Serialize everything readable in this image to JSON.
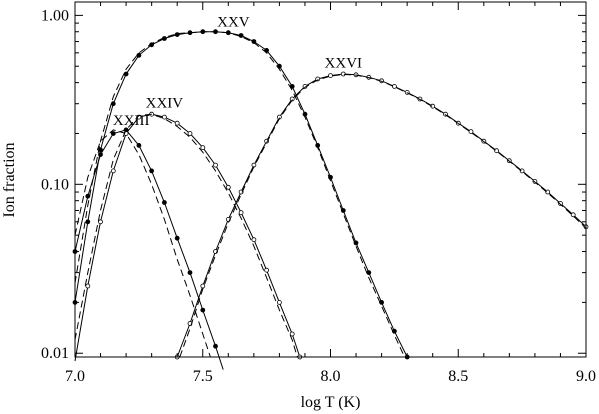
{
  "chart_data": {
    "type": "line",
    "title": "",
    "xlabel": "log T (K)",
    "ylabel": "Ion fraction",
    "x_scale": "linear",
    "y_scale": "log",
    "xlim": [
      7.0,
      9.0
    ],
    "ylim": [
      0.0095,
      1.2
    ],
    "x_ticks": [
      "7.0",
      "7.5",
      "8.0",
      "8.5",
      "9.0"
    ],
    "y_ticks": [
      "0.01",
      "0.10",
      "1.00"
    ],
    "x_tick_values": [
      7.0,
      7.5,
      8.0,
      8.5,
      9.0
    ],
    "y_tick_values": [
      0.01,
      0.1,
      1.0
    ],
    "grid": false,
    "legend": "none",
    "series": [
      {
        "name": "XXIII",
        "style": "solid",
        "marker": "filled",
        "points": [
          [
            7.0,
            0.04
          ],
          [
            7.05,
            0.085
          ],
          [
            7.1,
            0.15
          ],
          [
            7.15,
            0.2
          ],
          [
            7.2,
            0.21
          ],
          [
            7.25,
            0.17
          ],
          [
            7.3,
            0.12
          ],
          [
            7.35,
            0.078
          ],
          [
            7.4,
            0.048
          ],
          [
            7.45,
            0.03
          ],
          [
            7.5,
            0.018
          ],
          [
            7.55,
            0.011
          ],
          [
            7.58,
            0.008
          ]
        ]
      },
      {
        "name": "XXIII",
        "style": "dashed",
        "marker": "filled",
        "points": [
          [
            7.0,
            0.05
          ],
          [
            7.05,
            0.11
          ],
          [
            7.1,
            0.18
          ],
          [
            7.15,
            0.21
          ],
          [
            7.2,
            0.2
          ],
          [
            7.25,
            0.15
          ],
          [
            7.3,
            0.1
          ],
          [
            7.35,
            0.062
          ],
          [
            7.4,
            0.036
          ],
          [
            7.45,
            0.022
          ],
          [
            7.5,
            0.013
          ],
          [
            7.53,
            0.0095
          ]
        ]
      },
      {
        "name": "XXIV",
        "style": "solid",
        "marker": "open",
        "points": [
          [
            7.0,
            0.009
          ],
          [
            7.05,
            0.025
          ],
          [
            7.1,
            0.06
          ],
          [
            7.15,
            0.12
          ],
          [
            7.2,
            0.2
          ],
          [
            7.25,
            0.25
          ],
          [
            7.3,
            0.26
          ],
          [
            7.35,
            0.25
          ],
          [
            7.4,
            0.23
          ],
          [
            7.45,
            0.2
          ],
          [
            7.5,
            0.165
          ],
          [
            7.55,
            0.13
          ],
          [
            7.6,
            0.096
          ],
          [
            7.65,
            0.068
          ],
          [
            7.7,
            0.047
          ],
          [
            7.75,
            0.031
          ],
          [
            7.8,
            0.02
          ],
          [
            7.85,
            0.013
          ],
          [
            7.88,
            0.0095
          ]
        ]
      },
      {
        "name": "XXIV",
        "style": "dashed",
        "marker": "open",
        "points": [
          [
            7.0,
            0.012
          ],
          [
            7.05,
            0.03
          ],
          [
            7.1,
            0.07
          ],
          [
            7.15,
            0.14
          ],
          [
            7.2,
            0.21
          ],
          [
            7.25,
            0.255
          ],
          [
            7.3,
            0.26
          ],
          [
            7.35,
            0.245
          ],
          [
            7.4,
            0.22
          ],
          [
            7.45,
            0.19
          ],
          [
            7.5,
            0.155
          ],
          [
            7.55,
            0.12
          ],
          [
            7.6,
            0.089
          ],
          [
            7.65,
            0.063
          ],
          [
            7.7,
            0.043
          ],
          [
            7.75,
            0.028
          ],
          [
            7.8,
            0.018
          ],
          [
            7.85,
            0.012
          ],
          [
            7.87,
            0.0095
          ]
        ]
      },
      {
        "name": "XXV",
        "style": "solid",
        "marker": "filled",
        "points": [
          [
            7.0,
            0.02
          ],
          [
            7.05,
            0.06
          ],
          [
            7.1,
            0.16
          ],
          [
            7.15,
            0.3
          ],
          [
            7.2,
            0.45
          ],
          [
            7.25,
            0.58
          ],
          [
            7.3,
            0.67
          ],
          [
            7.35,
            0.73
          ],
          [
            7.4,
            0.77
          ],
          [
            7.45,
            0.79
          ],
          [
            7.5,
            0.8
          ],
          [
            7.55,
            0.8
          ],
          [
            7.6,
            0.79
          ],
          [
            7.65,
            0.76
          ],
          [
            7.7,
            0.7
          ],
          [
            7.75,
            0.62
          ],
          [
            7.8,
            0.5
          ],
          [
            7.85,
            0.38
          ],
          [
            7.9,
            0.26
          ],
          [
            7.95,
            0.17
          ],
          [
            8.0,
            0.11
          ],
          [
            8.05,
            0.07
          ],
          [
            8.1,
            0.045
          ],
          [
            8.15,
            0.03
          ],
          [
            8.2,
            0.02
          ],
          [
            8.25,
            0.0135
          ],
          [
            8.3,
            0.0095
          ]
        ]
      },
      {
        "name": "XXV",
        "style": "dashed",
        "marker": "filled",
        "points": [
          [
            7.0,
            0.026
          ],
          [
            7.05,
            0.075
          ],
          [
            7.1,
            0.18
          ],
          [
            7.15,
            0.33
          ],
          [
            7.2,
            0.48
          ],
          [
            7.25,
            0.6
          ],
          [
            7.3,
            0.68
          ],
          [
            7.35,
            0.74
          ],
          [
            7.4,
            0.78
          ],
          [
            7.45,
            0.79
          ],
          [
            7.5,
            0.8
          ],
          [
            7.55,
            0.8
          ],
          [
            7.6,
            0.79
          ],
          [
            7.65,
            0.75
          ],
          [
            7.7,
            0.69
          ],
          [
            7.75,
            0.6
          ],
          [
            7.8,
            0.48
          ],
          [
            7.85,
            0.36
          ],
          [
            7.9,
            0.25
          ],
          [
            7.95,
            0.165
          ],
          [
            8.0,
            0.105
          ],
          [
            8.05,
            0.067
          ],
          [
            8.1,
            0.043
          ],
          [
            8.15,
            0.028
          ],
          [
            8.2,
            0.019
          ],
          [
            8.25,
            0.0128
          ],
          [
            8.29,
            0.0095
          ]
        ]
      },
      {
        "name": "XXVI",
        "style": "solid",
        "marker": "open",
        "points": [
          [
            7.4,
            0.0095
          ],
          [
            7.45,
            0.015
          ],
          [
            7.5,
            0.025
          ],
          [
            7.55,
            0.04
          ],
          [
            7.6,
            0.062
          ],
          [
            7.65,
            0.09
          ],
          [
            7.7,
            0.13
          ],
          [
            7.75,
            0.18
          ],
          [
            7.8,
            0.25
          ],
          [
            7.85,
            0.32
          ],
          [
            7.9,
            0.38
          ],
          [
            7.95,
            0.42
          ],
          [
            8.0,
            0.44
          ],
          [
            8.05,
            0.45
          ],
          [
            8.1,
            0.445
          ],
          [
            8.15,
            0.43
          ],
          [
            8.2,
            0.41
          ],
          [
            8.25,
            0.38
          ],
          [
            8.3,
            0.35
          ],
          [
            8.35,
            0.32
          ],
          [
            8.4,
            0.29
          ],
          [
            8.45,
            0.26
          ],
          [
            8.5,
            0.23
          ],
          [
            8.55,
            0.205
          ],
          [
            8.6,
            0.18
          ],
          [
            8.65,
            0.158
          ],
          [
            8.7,
            0.138
          ],
          [
            8.75,
            0.12
          ],
          [
            8.8,
            0.104
          ],
          [
            8.85,
            0.09
          ],
          [
            8.9,
            0.077
          ],
          [
            8.95,
            0.066
          ],
          [
            9.0,
            0.056
          ]
        ]
      },
      {
        "name": "XXVI",
        "style": "dashed",
        "marker": "open",
        "points": [
          [
            7.41,
            0.0095
          ],
          [
            7.45,
            0.014
          ],
          [
            7.5,
            0.024
          ],
          [
            7.55,
            0.038
          ],
          [
            7.6,
            0.059
          ],
          [
            7.65,
            0.087
          ],
          [
            7.7,
            0.127
          ],
          [
            7.75,
            0.176
          ],
          [
            7.8,
            0.245
          ],
          [
            7.85,
            0.315
          ],
          [
            7.9,
            0.375
          ],
          [
            7.95,
            0.415
          ],
          [
            8.0,
            0.437
          ],
          [
            8.05,
            0.447
          ],
          [
            8.1,
            0.443
          ],
          [
            8.15,
            0.428
          ],
          [
            8.2,
            0.407
          ],
          [
            8.25,
            0.378
          ],
          [
            8.3,
            0.348
          ],
          [
            8.35,
            0.318
          ],
          [
            8.4,
            0.288
          ],
          [
            8.45,
            0.258
          ],
          [
            8.5,
            0.229
          ],
          [
            8.55,
            0.203
          ],
          [
            8.6,
            0.179
          ],
          [
            8.65,
            0.157
          ],
          [
            8.7,
            0.137
          ],
          [
            8.75,
            0.119
          ],
          [
            8.8,
            0.103
          ],
          [
            8.85,
            0.089
          ],
          [
            8.9,
            0.076
          ],
          [
            8.95,
            0.065
          ],
          [
            9.0,
            0.055
          ]
        ]
      }
    ],
    "annotations": [
      {
        "text": "XXV",
        "x": 7.62,
        "y": 0.86
      },
      {
        "text": "XXVI",
        "x": 8.05,
        "y": 0.49
      },
      {
        "text": "XXIV",
        "x": 7.35,
        "y": 0.285
      },
      {
        "text": "XXIII",
        "x": 7.22,
        "y": 0.225
      }
    ]
  }
}
